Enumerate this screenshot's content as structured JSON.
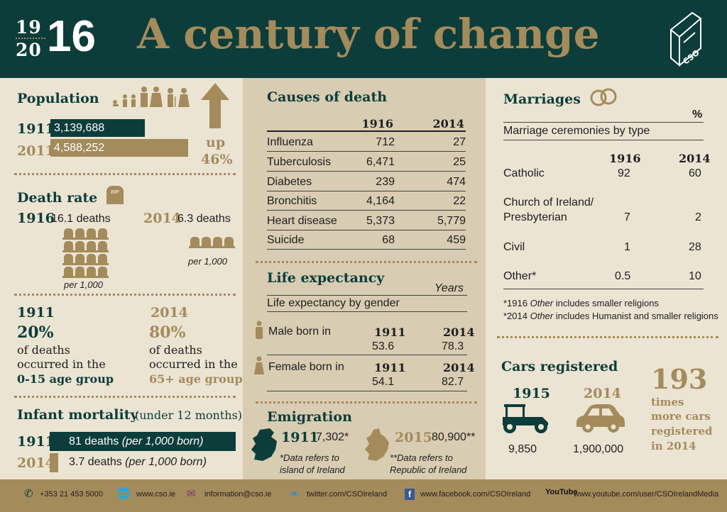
{
  "header": {
    "year_top_a": "19",
    "year_top_b": "20",
    "year_big": "16",
    "title": "A century of change",
    "logo_text": "CSO"
  },
  "population": {
    "title": "Population",
    "rows": [
      {
        "year": "1911",
        "value": "3,139,688",
        "share": 0.684
      },
      {
        "year": "2011",
        "value": "4,588,252",
        "share": 1.0
      }
    ],
    "change_word": "up",
    "change_pct": "46%"
  },
  "death_rate": {
    "title": "Death rate",
    "tomb_label": "RIP",
    "y1916": "1916",
    "d1916": "16.1 deaths",
    "y2014": "2014",
    "d2014": "6.3 deaths",
    "per1": "per 1,000",
    "per2": "per 1,000"
  },
  "age": {
    "a_year": "1911",
    "a_pct": "20%",
    "a_l1": "of deaths",
    "a_l2": "occurred in the",
    "a_l3": "0-15 age group",
    "b_year": "2014",
    "b_pct": "80%",
    "b_l1": "of deaths",
    "b_l2": "occurred in the",
    "b_l3": "65+ age group"
  },
  "infant": {
    "title": "Infant mortality",
    "subtitle": "(under 12 months)",
    "rows": [
      {
        "year": "1911",
        "text_a": "81 deaths ",
        "text_b": "(per 1,000 born)",
        "value": 81
      },
      {
        "year": "2014",
        "text_a": "3.7 deaths ",
        "text_b": "(per 1,000 born)",
        "value": 3.7
      }
    ]
  },
  "causes": {
    "title": "Causes of death",
    "col_a": "1916",
    "col_b": "2014",
    "rows": [
      {
        "name": "Influenza",
        "a": "712",
        "b": "27"
      },
      {
        "name": "Tuberculosis",
        "a": "6,471",
        "b": "25"
      },
      {
        "name": "Diabetes",
        "a": "239",
        "b": "474"
      },
      {
        "name": "Bronchitis",
        "a": "4,164",
        "b": "22"
      },
      {
        "name": "Heart disease",
        "a": "5,373",
        "b": "5,779"
      },
      {
        "name": "Suicide",
        "a": "68",
        "b": "459"
      }
    ]
  },
  "life": {
    "title": "Life expectancy",
    "unit": "Years",
    "subtitle": "Life expectancy by gender",
    "male_label": "Male born in",
    "female_label": "Female born in",
    "ya": "1911",
    "yb": "2014",
    "male_a": "53.6",
    "male_b": "78.3",
    "female_a": "54.1",
    "female_b": "82.7"
  },
  "emigration": {
    "title": "Emigration",
    "y1": "1911",
    "v1": "7,302*",
    "n1a": "*Data refers to",
    "n1b": "island of Ireland",
    "y2": "2015",
    "v2": "80,900**",
    "n2a": "**Data refers to",
    "n2b": "Republic of Ireland"
  },
  "marriages": {
    "title": "Marriages",
    "unit": "%",
    "subtitle": "Marriage ceremonies by type",
    "col_a": "1916",
    "col_b": "2014",
    "rows": [
      {
        "name": "Catholic",
        "a": "92",
        "b": "60"
      },
      {
        "name": "Church of Ireland/",
        "name2": "Presbyterian",
        "a": "7",
        "b": "2"
      },
      {
        "name": "Civil",
        "a": "1",
        "b": "28"
      },
      {
        "name": "Other*",
        "a": "0.5",
        "b": "10"
      }
    ],
    "note1_a": "*1916 ",
    "note1_b": "Other",
    "note1_c": " includes smaller religions",
    "note2_a": "*2014 ",
    "note2_b": "Other",
    "note2_c": " includes Humanist and smaller religions"
  },
  "cars": {
    "title": "Cars registered",
    "ya": "1915",
    "va": "9,850",
    "yb": "2014",
    "vb": "1,900,000",
    "big": "193",
    "l1": "times",
    "l2": "more cars",
    "l3": "registered",
    "l4": "in 2014"
  },
  "footer": {
    "phone": "+353 21 453 5000",
    "web": "www.cso.ie",
    "email": "information@cso.ie",
    "twitter": "twitter.com/CSOIreland",
    "facebook": "www.facebook.com/CSOIreland",
    "youtube_logo": "YouTube",
    "youtube": "www.youtube.com/user/CSOIrelandMedia"
  },
  "colors": {
    "teal": "#0c3d3a",
    "gold": "#a38b5c",
    "paper": "#ece4d3",
    "mid": "#d8ccb2"
  }
}
